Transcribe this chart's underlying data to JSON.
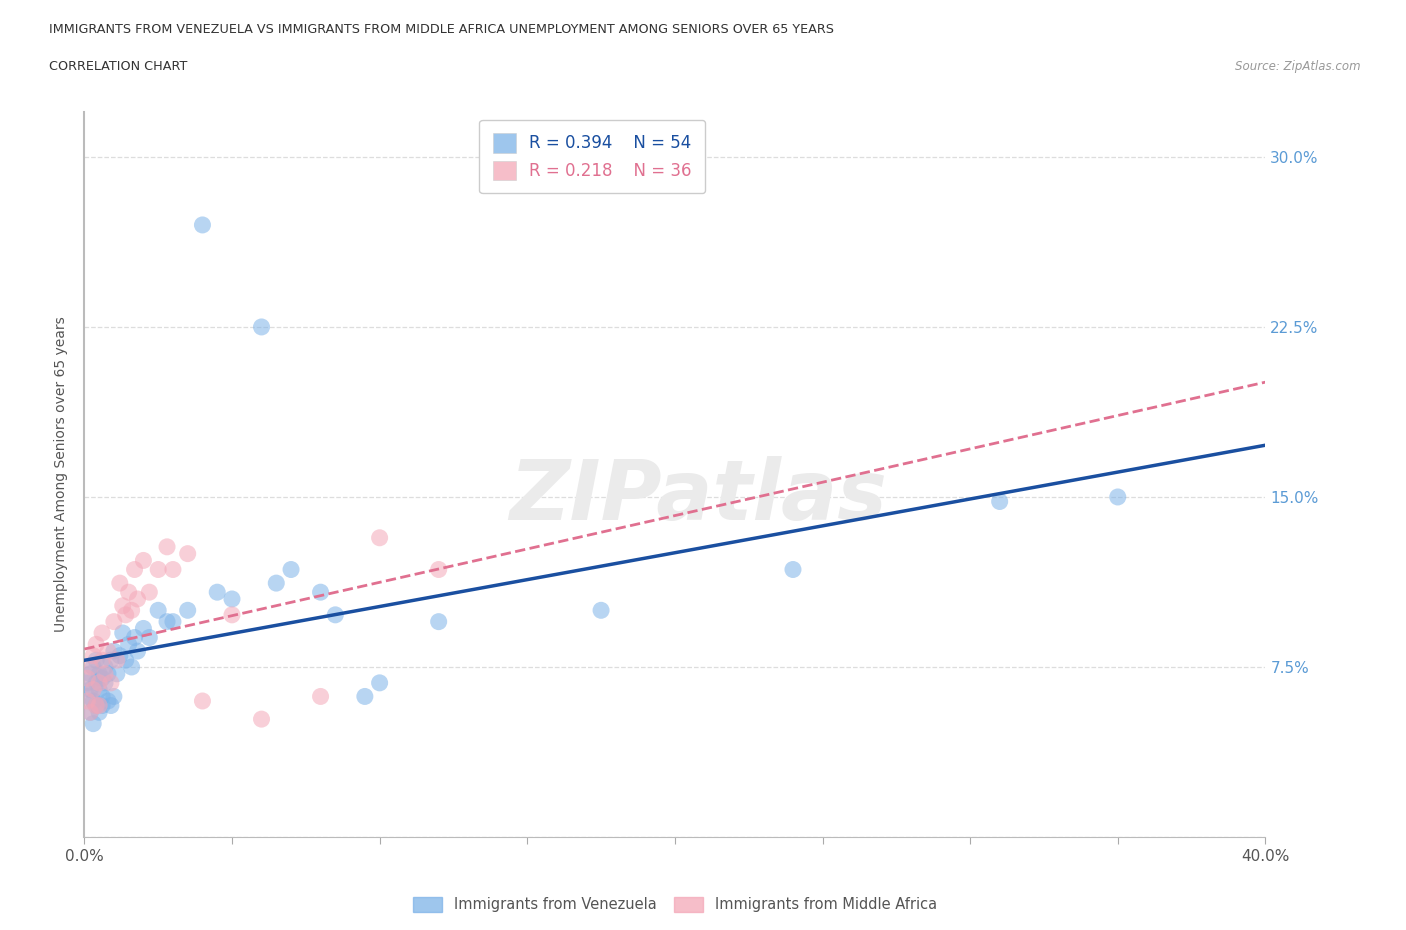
{
  "title_line1": "IMMIGRANTS FROM VENEZUELA VS IMMIGRANTS FROM MIDDLE AFRICA UNEMPLOYMENT AMONG SENIORS OVER 65 YEARS",
  "title_line2": "CORRELATION CHART",
  "source_text": "Source: ZipAtlas.com",
  "ylabel": "Unemployment Among Seniors over 65 years",
  "xlim": [
    0.0,
    0.4
  ],
  "ylim": [
    0.0,
    0.32
  ],
  "xticks": [
    0.0,
    0.05,
    0.1,
    0.15,
    0.2,
    0.25,
    0.3,
    0.35,
    0.4
  ],
  "yticks": [
    0.0,
    0.075,
    0.15,
    0.225,
    0.3
  ],
  "R_venezuela": 0.394,
  "N_venezuela": 54,
  "R_middle_africa": 0.218,
  "N_middle_africa": 36,
  "color_venezuela": "#7EB3E8",
  "color_middle_africa": "#F4A8B8",
  "line_color_venezuela": "#1A4FA0",
  "line_color_middle_africa": "#E07090",
  "watermark_text": "ZIPatlas",
  "venezuela_x": [
    0.001,
    0.001,
    0.002,
    0.002,
    0.002,
    0.003,
    0.003,
    0.003,
    0.004,
    0.004,
    0.004,
    0.005,
    0.005,
    0.005,
    0.006,
    0.006,
    0.006,
    0.007,
    0.007,
    0.008,
    0.008,
    0.009,
    0.009,
    0.01,
    0.01,
    0.011,
    0.012,
    0.013,
    0.014,
    0.015,
    0.016,
    0.017,
    0.018,
    0.02,
    0.022,
    0.025,
    0.028,
    0.03,
    0.035,
    0.04,
    0.045,
    0.05,
    0.06,
    0.065,
    0.07,
    0.08,
    0.085,
    0.095,
    0.1,
    0.12,
    0.175,
    0.24,
    0.31,
    0.35
  ],
  "venezuela_y": [
    0.062,
    0.068,
    0.055,
    0.065,
    0.072,
    0.05,
    0.06,
    0.075,
    0.058,
    0.068,
    0.078,
    0.055,
    0.065,
    0.072,
    0.062,
    0.07,
    0.058,
    0.068,
    0.075,
    0.06,
    0.072,
    0.058,
    0.078,
    0.062,
    0.082,
    0.072,
    0.08,
    0.09,
    0.078,
    0.085,
    0.075,
    0.088,
    0.082,
    0.092,
    0.088,
    0.1,
    0.095,
    0.095,
    0.1,
    0.27,
    0.108,
    0.105,
    0.225,
    0.112,
    0.118,
    0.108,
    0.098,
    0.062,
    0.068,
    0.095,
    0.1,
    0.118,
    0.148,
    0.15
  ],
  "middle_africa_x": [
    0.001,
    0.001,
    0.002,
    0.002,
    0.003,
    0.003,
    0.004,
    0.004,
    0.005,
    0.005,
    0.006,
    0.006,
    0.007,
    0.008,
    0.009,
    0.01,
    0.011,
    0.012,
    0.013,
    0.014,
    0.015,
    0.016,
    0.017,
    0.018,
    0.02,
    0.022,
    0.025,
    0.028,
    0.03,
    0.035,
    0.04,
    0.05,
    0.06,
    0.08,
    0.1,
    0.12
  ],
  "middle_africa_y": [
    0.06,
    0.07,
    0.055,
    0.075,
    0.065,
    0.08,
    0.058,
    0.085,
    0.068,
    0.058,
    0.078,
    0.09,
    0.072,
    0.082,
    0.068,
    0.095,
    0.078,
    0.112,
    0.102,
    0.098,
    0.108,
    0.1,
    0.118,
    0.105,
    0.122,
    0.108,
    0.118,
    0.128,
    0.118,
    0.125,
    0.06,
    0.098,
    0.052,
    0.062,
    0.132,
    0.118
  ]
}
